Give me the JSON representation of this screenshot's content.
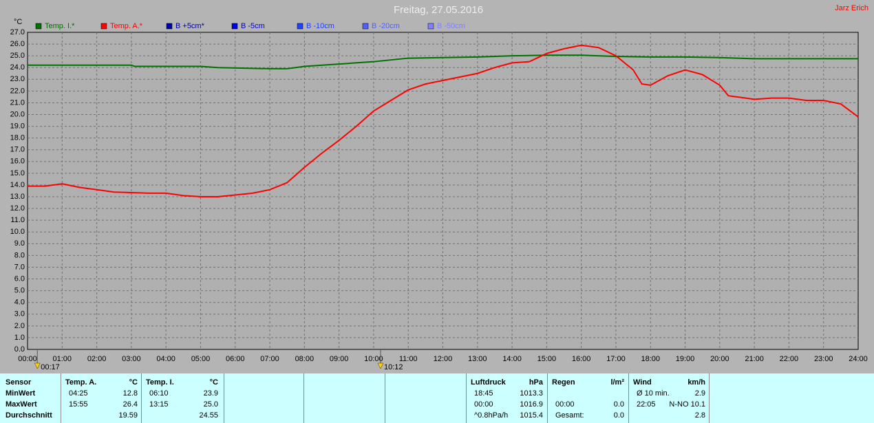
{
  "chart_data": {
    "type": "line",
    "title": "Freitag, 27.05.2016",
    "author": "Jarz Erich",
    "y_label": "°C",
    "xlim": [
      0,
      24
    ],
    "xticks": [
      {
        "value": 0,
        "label": "00:00"
      },
      {
        "value": 1,
        "label": "01:00"
      },
      {
        "value": 2,
        "label": "02:00"
      },
      {
        "value": 3,
        "label": "03:00"
      },
      {
        "value": 4,
        "label": "04:00"
      },
      {
        "value": 5,
        "label": "05:00"
      },
      {
        "value": 6,
        "label": "06:00"
      },
      {
        "value": 7,
        "label": "07:00"
      },
      {
        "value": 8,
        "label": "08:00"
      },
      {
        "value": 9,
        "label": "09:00"
      },
      {
        "value": 10,
        "label": "10:00"
      },
      {
        "value": 11,
        "label": "11:00"
      },
      {
        "value": 12,
        "label": "12:00"
      },
      {
        "value": 13,
        "label": "13:00"
      },
      {
        "value": 14,
        "label": "14:00"
      },
      {
        "value": 15,
        "label": "15:00"
      },
      {
        "value": 16,
        "label": "16:00"
      },
      {
        "value": 17,
        "label": "17:00"
      },
      {
        "value": 18,
        "label": "18:00"
      },
      {
        "value": 19,
        "label": "19:00"
      },
      {
        "value": 20,
        "label": "20:00"
      },
      {
        "value": 21,
        "label": "21:00"
      },
      {
        "value": 22,
        "label": "22:00"
      },
      {
        "value": 23,
        "label": "23:00"
      },
      {
        "value": 24,
        "label": "24:00"
      }
    ],
    "ylim": [
      0,
      27
    ],
    "yticks": [
      {
        "value": 0,
        "label": "0.0"
      },
      {
        "value": 1,
        "label": "1.0"
      },
      {
        "value": 2,
        "label": "2.0"
      },
      {
        "value": 3,
        "label": "3.0"
      },
      {
        "value": 4,
        "label": "4.0"
      },
      {
        "value": 5,
        "label": "5.0"
      },
      {
        "value": 6,
        "label": "6.0"
      },
      {
        "value": 7,
        "label": "7.0"
      },
      {
        "value": 8,
        "label": "8.0"
      },
      {
        "value": 9,
        "label": "9.0"
      },
      {
        "value": 10,
        "label": "10.0"
      },
      {
        "value": 11,
        "label": "11.0"
      },
      {
        "value": 12,
        "label": "12.0"
      },
      {
        "value": 13,
        "label": "13.0"
      },
      {
        "value": 14,
        "label": "14.0"
      },
      {
        "value": 15,
        "label": "15.0"
      },
      {
        "value": 16,
        "label": "16.0"
      },
      {
        "value": 17,
        "label": "17.0"
      },
      {
        "value": 18,
        "label": "18.0"
      },
      {
        "value": 19,
        "label": "19.0"
      },
      {
        "value": 20,
        "label": "20.0"
      },
      {
        "value": 21,
        "label": "21.0"
      },
      {
        "value": 22,
        "label": "22.0"
      },
      {
        "value": 23,
        "label": "23.0"
      },
      {
        "value": 24,
        "label": "24.0"
      },
      {
        "value": 25,
        "label": "25.0"
      },
      {
        "value": 26,
        "label": "26.0"
      },
      {
        "value": 27,
        "label": "27.0"
      }
    ],
    "grid": true,
    "legend": [
      {
        "name": "Temp. I.*",
        "color": "#007000"
      },
      {
        "name": "Temp. A.*",
        "color": "#ff0000"
      },
      {
        "name": "B +5cm*",
        "color": "#0000a0"
      },
      {
        "name": "B -5cm",
        "color": "#0000e0"
      },
      {
        "name": "B -10cm",
        "color": "#2040ff"
      },
      {
        "name": "B -20cm",
        "color": "#5060ff"
      },
      {
        "name": "B -50cm",
        "color": "#8080ff"
      }
    ],
    "series": [
      {
        "name": "Temp. I.*",
        "color": "#007000",
        "x": [
          0,
          3,
          3.1,
          5,
          5.5,
          7,
          7.5,
          8,
          9,
          10,
          11,
          12,
          13,
          14,
          15,
          16,
          17,
          18,
          19,
          20,
          21,
          22,
          24
        ],
        "values": [
          24.2,
          24.2,
          24.1,
          24.1,
          24.0,
          23.9,
          23.9,
          24.1,
          24.3,
          24.5,
          24.8,
          24.85,
          24.9,
          25.0,
          25.05,
          25.05,
          24.95,
          24.9,
          24.9,
          24.85,
          24.75,
          24.75,
          24.75
        ]
      },
      {
        "name": "Temp. A.*",
        "color": "#ff0000",
        "x": [
          0,
          0.5,
          1,
          1.5,
          2,
          2.5,
          3,
          3.5,
          4,
          4.5,
          5,
          5.5,
          6,
          6.5,
          7,
          7.5,
          8,
          8.5,
          9,
          9.5,
          10,
          10.5,
          11,
          11.5,
          12,
          12.5,
          13,
          13.5,
          14,
          14.5,
          15,
          15.5,
          16,
          16.5,
          17,
          17.5,
          17.75,
          18,
          18.5,
          19,
          19.5,
          20,
          20.25,
          20.5,
          21,
          21.5,
          22,
          22.5,
          23,
          23.5,
          24
        ],
        "values": [
          13.9,
          13.9,
          14.1,
          13.8,
          13.6,
          13.4,
          13.35,
          13.3,
          13.3,
          13.1,
          13.0,
          13.0,
          13.15,
          13.3,
          13.6,
          14.2,
          15.5,
          16.7,
          17.8,
          19.0,
          20.3,
          21.2,
          22.1,
          22.6,
          22.9,
          23.2,
          23.5,
          24.0,
          24.4,
          24.5,
          25.2,
          25.6,
          25.9,
          25.7,
          25.0,
          23.8,
          22.6,
          22.5,
          23.3,
          23.8,
          23.4,
          22.5,
          21.6,
          21.5,
          21.3,
          21.4,
          21.4,
          21.2,
          21.2,
          20.9,
          19.8
        ]
      }
    ],
    "annotations": [
      {
        "text": "00:17",
        "x": 0.2833
      },
      {
        "text": "10:12",
        "x": 10.2
      }
    ]
  },
  "panel": {
    "labels": {
      "header": "Sensor",
      "rows": [
        "MinWert",
        "MaxWert",
        "Durchschnitt"
      ]
    },
    "blocks": [
      {
        "name": "Temp. A.",
        "unit": "°C",
        "rows": [
          [
            "04:25",
            "12.8"
          ],
          [
            "15:55",
            "26.4"
          ],
          [
            null,
            "19.59"
          ]
        ]
      },
      {
        "name": "Temp. I.",
        "unit": "°C",
        "rows": [
          [
            "06:10",
            "23.9"
          ],
          [
            "13:15",
            "25.0"
          ],
          [
            null,
            "24.55"
          ]
        ]
      },
      {
        "name": "Luftdruck",
        "unit": "hPa",
        "rows": [
          [
            "18:45",
            "1013.3"
          ],
          [
            "00:00",
            "1016.9"
          ],
          [
            "^0.8hPa/h",
            "1015.4"
          ]
        ]
      },
      {
        "name": "Regen",
        "unit": "l/m²",
        "rows": [
          [
            null,
            null
          ],
          [
            "00:00",
            "0.0"
          ],
          [
            "Gesamt:",
            "0.0"
          ]
        ]
      },
      {
        "name": "Wind",
        "unit": "km/h",
        "rows": [
          [
            "Ø 10 min.",
            "2.9"
          ],
          [
            "22:05",
            "N-NO 10.1"
          ],
          [
            null,
            "2.8"
          ]
        ]
      }
    ]
  }
}
